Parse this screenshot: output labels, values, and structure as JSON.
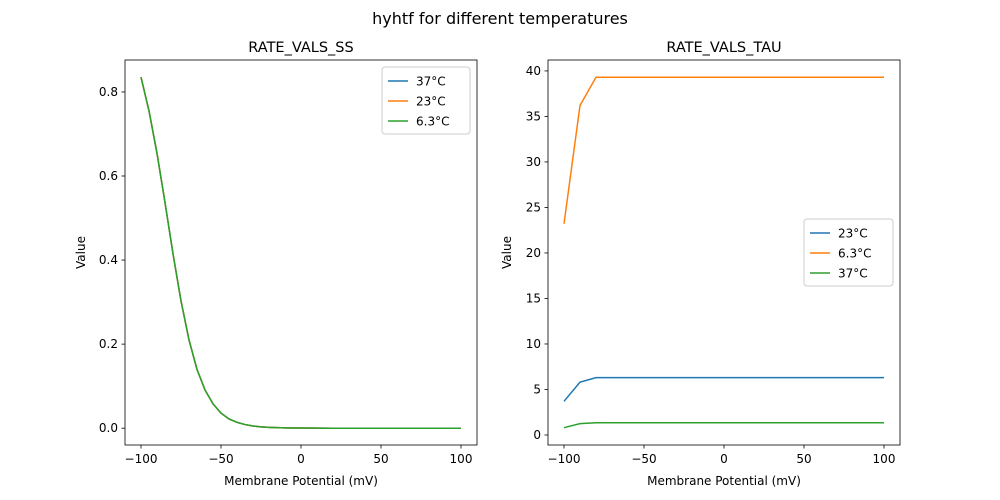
{
  "suptitle": "hyhtf for different temperatures",
  "chart_data": [
    {
      "type": "line",
      "title": "RATE_VALS_SS",
      "xlabel": "Membrane Potential (mV)",
      "ylabel": "Value",
      "xlim": [
        -110,
        110
      ],
      "ylim": [
        -0.04,
        0.876
      ],
      "xticks": [
        -100,
        -50,
        0,
        50,
        100
      ],
      "xtick_labels": [
        "−100",
        "−50",
        "0",
        "50",
        "100"
      ],
      "yticks": [
        0.0,
        0.2,
        0.4,
        0.6,
        0.8
      ],
      "ytick_labels": [
        "0.0",
        "0.2",
        "0.4",
        "0.6",
        "0.8"
      ],
      "legend": "top-right",
      "grid": false,
      "x": [
        -100,
        -95,
        -90,
        -85,
        -80,
        -75,
        -70,
        -65,
        -60,
        -55,
        -50,
        -45,
        -40,
        -35,
        -30,
        -25,
        -20,
        -15,
        -10,
        -5,
        0,
        10,
        20,
        30,
        40,
        50,
        60,
        70,
        80,
        90,
        100
      ],
      "series": [
        {
          "name": "37°C",
          "color": "#1f77b4",
          "values": [
            0.835,
            0.755,
            0.654,
            0.537,
            0.415,
            0.303,
            0.21,
            0.14,
            0.091,
            0.058,
            0.036,
            0.022,
            0.014,
            0.0086,
            0.0053,
            0.0032,
            0.002,
            0.0012,
            0.0007,
            0.0005,
            0.0003,
            0.0001,
            0,
            0,
            0,
            0,
            0,
            0,
            0,
            0,
            0
          ]
        },
        {
          "name": "23°C",
          "color": "#ff7f0e",
          "values": [
            0.835,
            0.755,
            0.654,
            0.537,
            0.415,
            0.303,
            0.21,
            0.14,
            0.091,
            0.058,
            0.036,
            0.022,
            0.014,
            0.0086,
            0.0053,
            0.0032,
            0.002,
            0.0012,
            0.0007,
            0.0005,
            0.0003,
            0.0001,
            0,
            0,
            0,
            0,
            0,
            0,
            0,
            0,
            0
          ]
        },
        {
          "name": "6.3°C",
          "color": "#2ca02c",
          "values": [
            0.835,
            0.755,
            0.654,
            0.537,
            0.415,
            0.303,
            0.21,
            0.14,
            0.091,
            0.058,
            0.036,
            0.022,
            0.014,
            0.0086,
            0.0053,
            0.0032,
            0.002,
            0.0012,
            0.0007,
            0.0005,
            0.0003,
            0.0001,
            0,
            0,
            0,
            0,
            0,
            0,
            0,
            0,
            0
          ]
        }
      ]
    },
    {
      "type": "line",
      "title": "RATE_VALS_TAU",
      "xlabel": "Membrane Potential (mV)",
      "ylabel": "Value",
      "xlim": [
        -110,
        110
      ],
      "ylim": [
        -1.1,
        41.2
      ],
      "xticks": [
        -100,
        -50,
        0,
        50,
        100
      ],
      "xtick_labels": [
        "−100",
        "−50",
        "0",
        "50",
        "100"
      ],
      "yticks": [
        0,
        5,
        10,
        15,
        20,
        25,
        30,
        35,
        40
      ],
      "ytick_labels": [
        "0",
        "5",
        "10",
        "15",
        "20",
        "25",
        "30",
        "35",
        "40"
      ],
      "legend": "center-right",
      "grid": false,
      "x": [
        -100,
        -90,
        -80,
        -70,
        -60,
        -50,
        -40,
        -30,
        -20,
        -10,
        0,
        10,
        20,
        30,
        40,
        50,
        60,
        70,
        80,
        90,
        100
      ],
      "series": [
        {
          "name": "23°C",
          "color": "#1f77b4",
          "values": [
            3.7,
            5.8,
            6.3,
            6.3,
            6.3,
            6.3,
            6.3,
            6.3,
            6.3,
            6.3,
            6.3,
            6.3,
            6.3,
            6.3,
            6.3,
            6.3,
            6.3,
            6.3,
            6.3,
            6.3,
            6.3
          ]
        },
        {
          "name": "6.3°C",
          "color": "#ff7f0e",
          "values": [
            23.2,
            36.2,
            39.3,
            39.3,
            39.3,
            39.3,
            39.3,
            39.3,
            39.3,
            39.3,
            39.3,
            39.3,
            39.3,
            39.3,
            39.3,
            39.3,
            39.3,
            39.3,
            39.3,
            39.3,
            39.3
          ]
        },
        {
          "name": "37°C",
          "color": "#2ca02c",
          "values": [
            0.8,
            1.25,
            1.35,
            1.35,
            1.35,
            1.35,
            1.35,
            1.35,
            1.35,
            1.35,
            1.35,
            1.35,
            1.35,
            1.35,
            1.35,
            1.35,
            1.35,
            1.35,
            1.35,
            1.35,
            1.35
          ]
        }
      ]
    }
  ]
}
